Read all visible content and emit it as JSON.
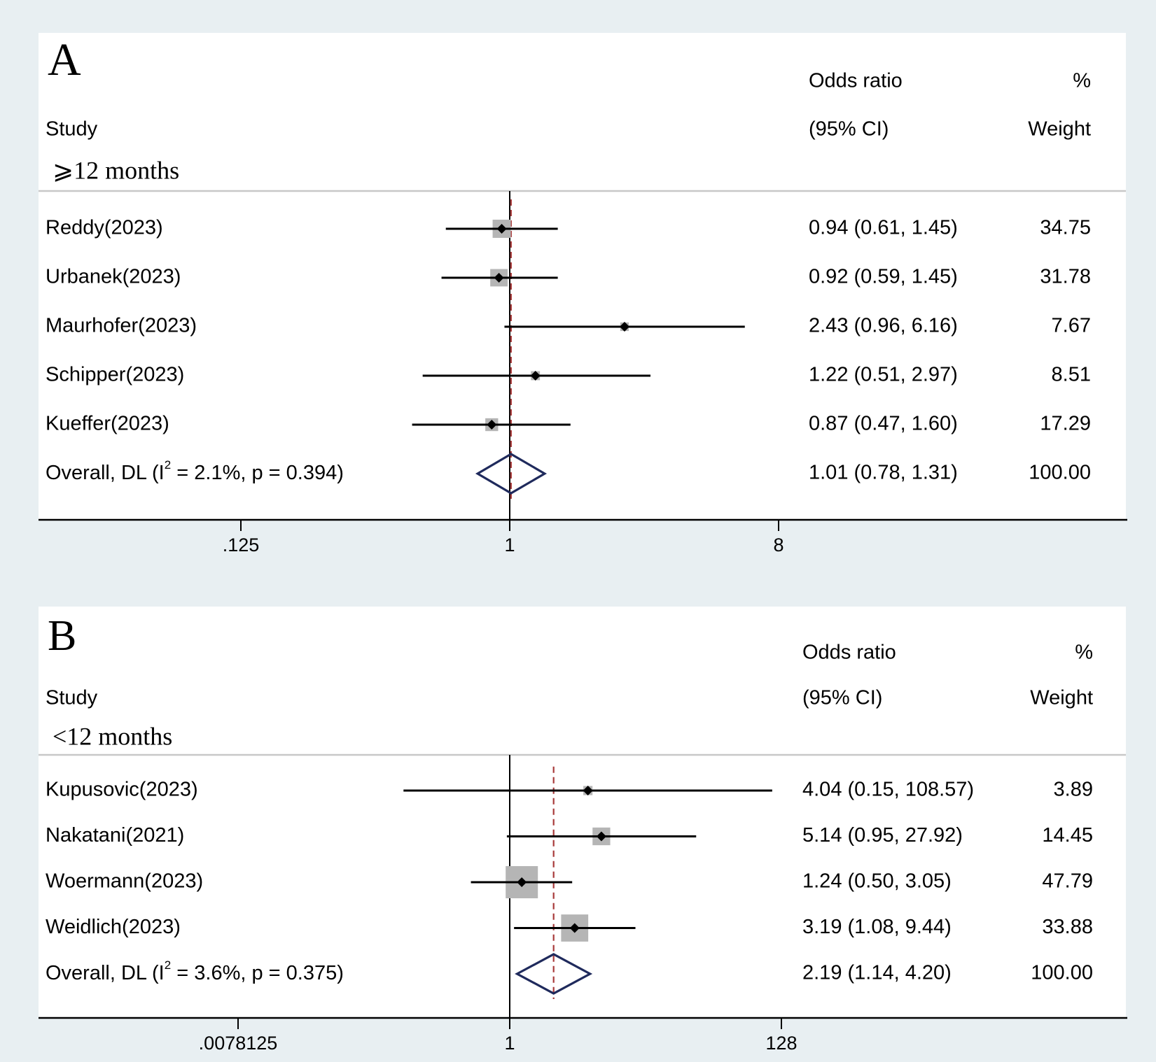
{
  "chart_data": [
    {
      "type": "forest",
      "panel_label": "A",
      "subgroup": "⩾12 months",
      "headers": {
        "study": "Study",
        "or_line1": "Odds ratio",
        "or_line2": "(95% CI)",
        "weight_line1": "%",
        "weight_line2": "Weight"
      },
      "x_scale": "log2",
      "xlim": [
        0.0625,
        16
      ],
      "ticks": [
        {
          "value": 0.125,
          "label": ".125"
        },
        {
          "value": 1,
          "label": "1"
        },
        {
          "value": 8,
          "label": "8"
        }
      ],
      "null_value": 1,
      "studies": [
        {
          "name": "Reddy(2023)",
          "or": 0.94,
          "lo": 0.61,
          "hi": 1.45,
          "or_text": "0.94 (0.61, 1.45)",
          "weight": 34.75,
          "weight_text": "34.75"
        },
        {
          "name": "Urbanek(2023)",
          "or": 0.92,
          "lo": 0.59,
          "hi": 1.45,
          "or_text": "0.92 (0.59, 1.45)",
          "weight": 31.78,
          "weight_text": "31.78"
        },
        {
          "name": "Maurhofer(2023)",
          "or": 2.43,
          "lo": 0.96,
          "hi": 6.16,
          "or_text": "2.43 (0.96, 6.16)",
          "weight": 7.67,
          "weight_text": "7.67"
        },
        {
          "name": "Schipper(2023)",
          "or": 1.22,
          "lo": 0.51,
          "hi": 2.97,
          "or_text": "1.22 (0.51, 2.97)",
          "weight": 8.51,
          "weight_text": "8.51"
        },
        {
          "name": "Kueffer(2023)",
          "or": 0.87,
          "lo": 0.47,
          "hi": 1.6,
          "or_text": "0.87 (0.47, 1.60)",
          "weight": 17.29,
          "weight_text": "17.29"
        }
      ],
      "overall": {
        "label_prefix": "Overall, DL (I",
        "label_sup": "2",
        "label_suffix": " = 2.1%, p = 0.394)",
        "or": 1.01,
        "lo": 0.78,
        "hi": 1.31,
        "or_text": "1.01 (0.78, 1.31)",
        "weight_text": "100.00"
      }
    },
    {
      "type": "forest",
      "panel_label": "B",
      "subgroup": "<12 months",
      "headers": {
        "study": "Study",
        "or_line1": "Odds ratio",
        "or_line2": "(95% CI)",
        "weight_line1": "%",
        "weight_line2": "Weight"
      },
      "x_scale": "log2",
      "xlim": [
        0.00048828125,
        1024
      ],
      "ticks": [
        {
          "value": 0.0078125,
          "label": ".0078125"
        },
        {
          "value": 1,
          "label": "1"
        },
        {
          "value": 128,
          "label": "128"
        }
      ],
      "null_value": 1,
      "studies": [
        {
          "name": "Kupusovic(2023)",
          "or": 4.04,
          "lo": 0.15,
          "hi": 108.57,
          "or_text": "4.04 (0.15, 108.57)",
          "weight": 3.89,
          "weight_text": "3.89"
        },
        {
          "name": "Nakatani(2021)",
          "or": 5.14,
          "lo": 0.95,
          "hi": 27.92,
          "or_text": "5.14 (0.95, 27.92)",
          "weight": 14.45,
          "weight_text": "14.45"
        },
        {
          "name": "Woermann(2023)",
          "or": 1.24,
          "lo": 0.5,
          "hi": 3.05,
          "or_text": "1.24 (0.50, 3.05)",
          "weight": 47.79,
          "weight_text": "47.79"
        },
        {
          "name": "Weidlich(2023)",
          "or": 3.19,
          "lo": 1.08,
          "hi": 9.44,
          "or_text": "3.19 (1.08, 9.44)",
          "weight": 33.88,
          "weight_text": "33.88"
        }
      ],
      "overall": {
        "label_prefix": "Overall, DL (I",
        "label_sup": "2",
        "label_suffix": " = 3.6%, p = 0.375)",
        "or": 2.19,
        "lo": 1.14,
        "hi": 4.2,
        "or_text": "2.19 (1.14, 4.20)",
        "weight_text": "100.00"
      }
    }
  ],
  "colors": {
    "background": "#e8eff2",
    "panel": "#ffffff",
    "weight_box": "#b5b5b5",
    "point": "#000000",
    "overall_diamond": "#1f2a5c",
    "overall_line": "#a83a3a",
    "header_rule": "#c8c8c8"
  }
}
